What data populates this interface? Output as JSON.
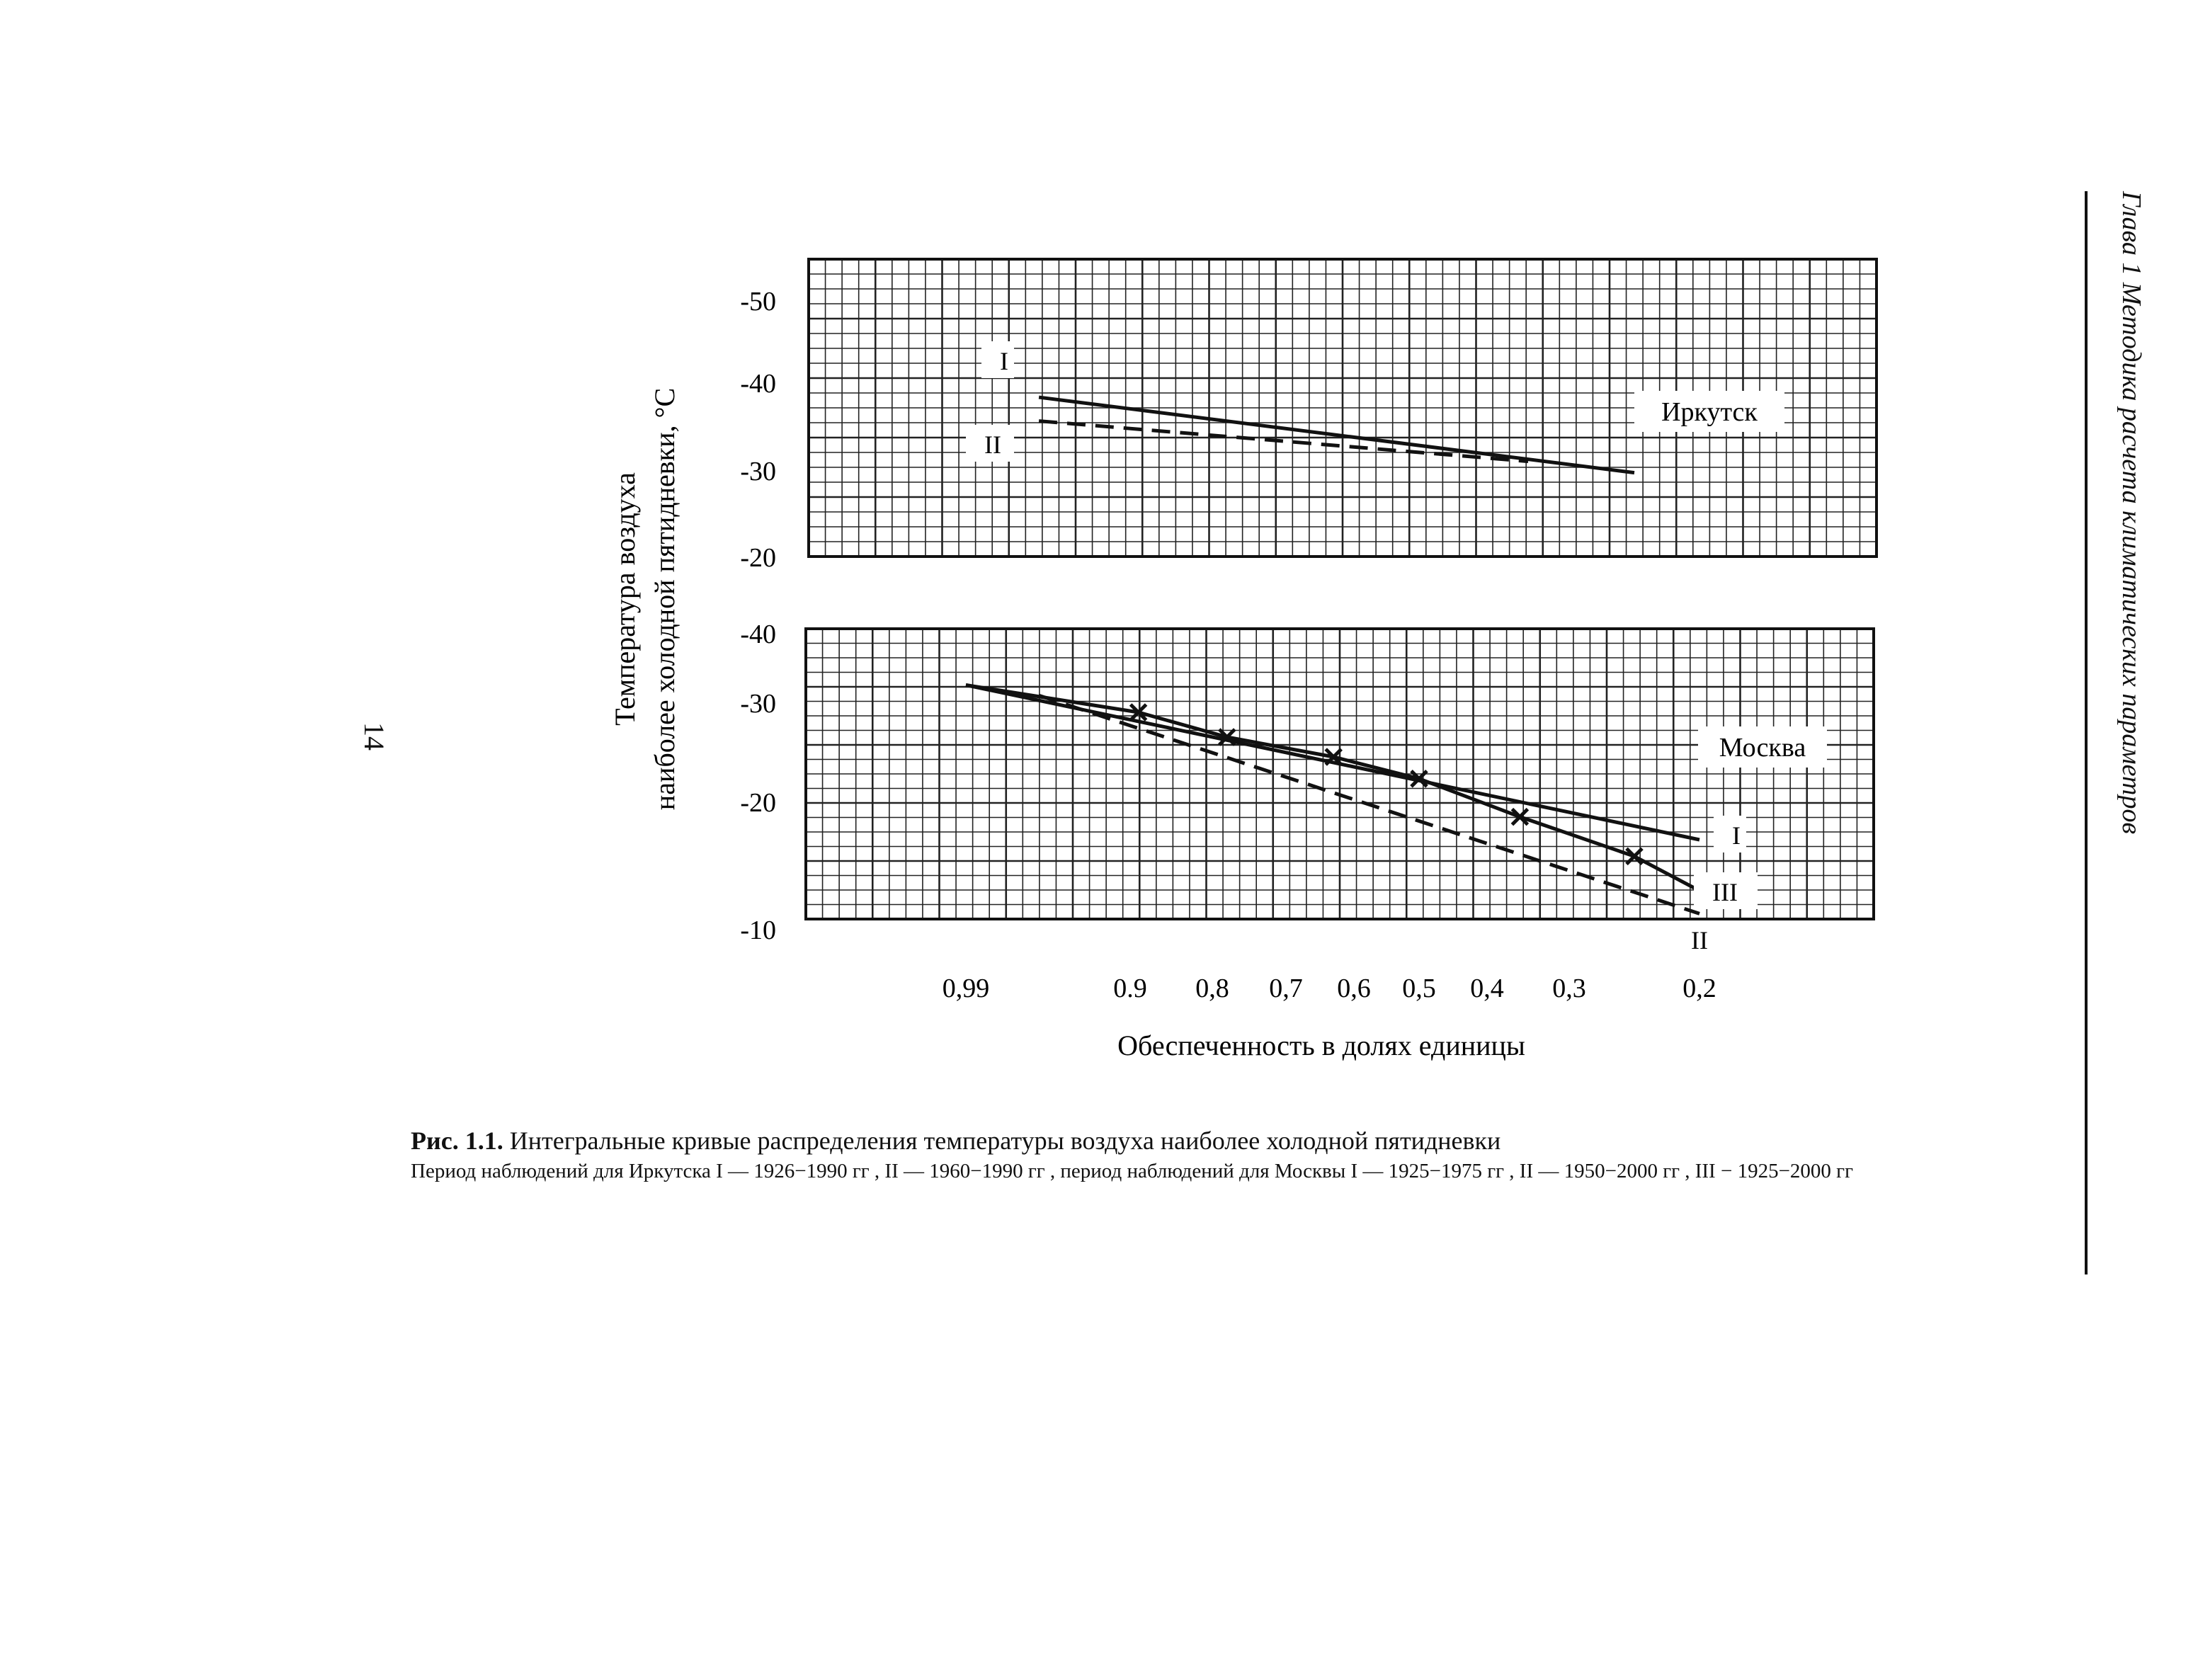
{
  "page": {
    "running_head": "Глава 1 Методика расчета климатических параметров",
    "page_number": "14"
  },
  "caption": {
    "fig_label": "Рис. 1.1.",
    "title": "Интегральные кривые распределения температуры воздуха наиболее холодной пятидневки",
    "note": "Период наблюдений для Иркутска  I — 1926−1990 гг , II — 1960−1990 гг , период наблюдений для Москвы  I — 1925−1975 гг , II — 1950−2000 гг , III − 1925−2000 гг"
  },
  "chart_data": [
    {
      "type": "line",
      "panel": "Иркутск",
      "title": "Иркутск",
      "ylabel": "Температура воздуха наиболее холодной пятидневки, °С",
      "xlabel": "",
      "y_ticks": [
        "-50",
        "-40",
        "-30",
        "-20"
      ],
      "ylim": [
        -20,
        -50
      ],
      "grid": true,
      "series": [
        {
          "name": "I",
          "style": "solid",
          "x": [
            0.95,
            0.25
          ],
          "y": [
            -38.3,
            -29.7
          ]
        },
        {
          "name": "II",
          "style": "dashed",
          "x": [
            0.95,
            0.35
          ],
          "y": [
            -35.6,
            -31.0
          ]
        }
      ]
    },
    {
      "type": "line",
      "panel": "Москва",
      "title": "Москва",
      "ylabel": "",
      "xlabel": "Обеспеченность в долях единицы",
      "x_ticks": [
        "0,99",
        "0.9",
        "0,8",
        "0,7",
        "0,6",
        "0,5",
        "0,4",
        "0,3",
        "0,2"
      ],
      "y_ticks": [
        "-40",
        "-30",
        "-20",
        "-10"
      ],
      "ylim": [
        -10,
        -40
      ],
      "grid": true,
      "series": [
        {
          "name": "I",
          "style": "solid",
          "x": [
            0.99,
            0.2
          ],
          "y": [
            -32.5,
            -17.0
          ]
        },
        {
          "name": "II",
          "style": "dashed",
          "x": [
            0.95,
            0.2
          ],
          "y": [
            -31.0,
            -11.2
          ]
        },
        {
          "name": "III",
          "style": "solid-x",
          "x": [
            0.99,
            0.89,
            0.78,
            0.63,
            0.5,
            0.36,
            0.25,
            0.2
          ],
          "y": [
            -32.5,
            -29.0,
            -26.5,
            -24.5,
            -22.3,
            -18.8,
            -15.7,
            -13.0
          ],
          "marker_x": [
            0.89,
            0.78,
            0.63,
            0.5,
            0.36,
            0.25
          ]
        }
      ]
    }
  ]
}
